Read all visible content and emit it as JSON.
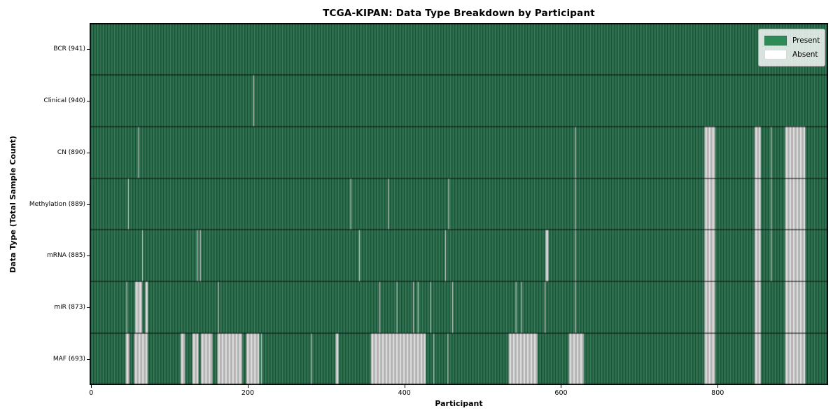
{
  "chart_data": {
    "type": "heatmap",
    "title": "TCGA-KIPAN: Data Type Breakdown by Participant",
    "xlabel": "Participant",
    "ylabel": "Data Type (Total Sample Count)",
    "n_participants": 941,
    "x_range": [
      -2,
      941
    ],
    "x_ticks": [
      0,
      200,
      400,
      600,
      800
    ],
    "x_tick_labels": [
      "0",
      "200",
      "400",
      "600",
      "800"
    ],
    "legend": [
      {
        "label": "Present",
        "color": "#2e8b57"
      },
      {
        "label": "Absent",
        "color": "#ffffff"
      }
    ],
    "legend_position": "upper right",
    "grid": false,
    "rows": [
      {
        "label": "BCR (941)",
        "data_type": "BCR",
        "present_count": 941,
        "absent_ranges": []
      },
      {
        "label": "Clinical (940)",
        "data_type": "Clinical",
        "present_count": 940,
        "absent_ranges": [
          [
            207,
            208
          ]
        ]
      },
      {
        "label": "CN (890)",
        "data_type": "CN",
        "present_count": 890,
        "absent_ranges": [
          [
            60,
            61
          ],
          [
            618,
            619
          ],
          [
            783,
            797
          ],
          [
            847,
            855
          ],
          [
            868,
            869
          ],
          [
            886,
            912
          ]
        ]
      },
      {
        "label": "Methylation (889)",
        "data_type": "Methylation",
        "present_count": 889,
        "absent_ranges": [
          [
            47,
            48
          ],
          [
            331,
            332
          ],
          [
            379,
            380
          ],
          [
            456,
            457
          ],
          [
            618,
            619
          ],
          [
            783,
            797
          ],
          [
            847,
            855
          ],
          [
            868,
            869
          ],
          [
            886,
            912
          ]
        ]
      },
      {
        "label": "mRNA (885)",
        "data_type": "mRNA",
        "present_count": 885,
        "absent_ranges": [
          [
            65,
            66
          ],
          [
            135,
            136
          ],
          [
            139,
            140
          ],
          [
            342,
            343
          ],
          [
            452,
            453
          ],
          [
            580,
            584
          ],
          [
            618,
            619
          ],
          [
            783,
            797
          ],
          [
            847,
            855
          ],
          [
            868,
            869
          ],
          [
            886,
            912
          ]
        ]
      },
      {
        "label": "miR (873)",
        "data_type": "miR",
        "present_count": 873,
        "absent_ranges": [
          [
            45,
            46
          ],
          [
            56,
            65
          ],
          [
            69,
            72
          ],
          [
            162,
            163
          ],
          [
            368,
            369
          ],
          [
            390,
            391
          ],
          [
            411,
            412
          ],
          [
            417,
            418
          ],
          [
            433,
            434
          ],
          [
            461,
            462
          ],
          [
            542,
            543
          ],
          [
            549,
            550
          ],
          [
            579,
            580
          ],
          [
            618,
            619
          ],
          [
            783,
            797
          ],
          [
            847,
            855
          ],
          [
            886,
            912
          ]
        ]
      },
      {
        "label": "MAF (693)",
        "data_type": "MAF",
        "present_count": 693,
        "absent_ranges": [
          [
            44,
            49
          ],
          [
            55,
            72
          ],
          [
            114,
            120
          ],
          [
            129,
            137
          ],
          [
            140,
            155
          ],
          [
            161,
            193
          ],
          [
            198,
            214
          ],
          [
            217,
            218
          ],
          [
            281,
            282
          ],
          [
            312,
            316
          ],
          [
            357,
            427
          ],
          [
            437,
            438
          ],
          [
            455,
            456
          ],
          [
            533,
            570
          ],
          [
            610,
            629
          ],
          [
            783,
            797
          ],
          [
            847,
            855
          ],
          [
            886,
            912
          ]
        ]
      }
    ],
    "colors": {
      "present_base": "#2d7150",
      "present_dark_stripe": "rgba(10,40,26,0.50)",
      "present_light_stripe": "rgba(255,255,255,0.07)",
      "absent_base": "#b2b2b2",
      "absent_light_stripe": "#e2e2e2",
      "absent_thin": "#c6c6c6",
      "separator": "#0a0a0a",
      "border": "#000000"
    }
  }
}
